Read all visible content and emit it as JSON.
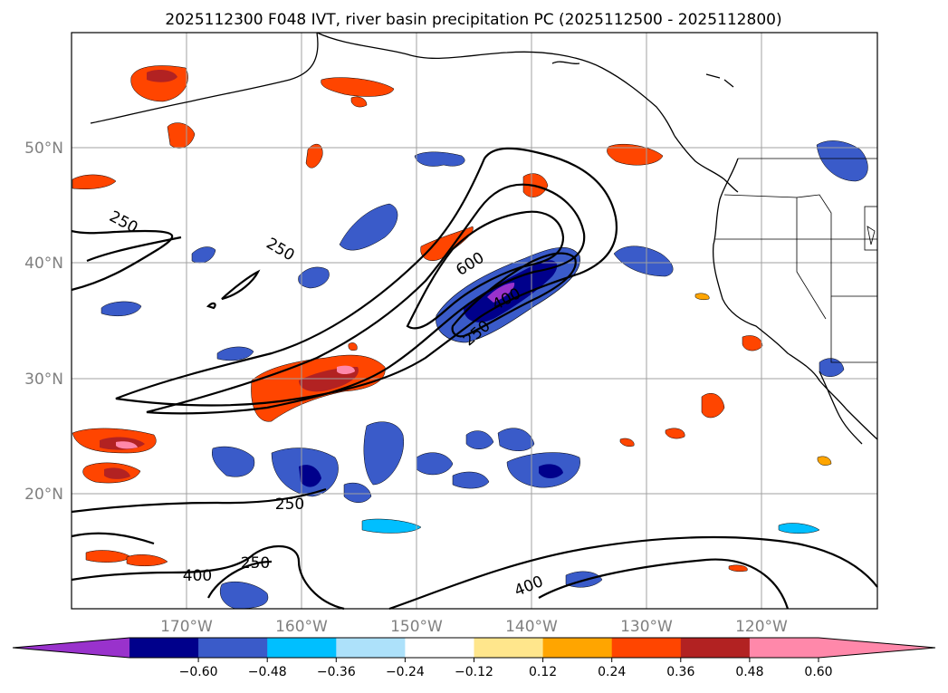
{
  "title": "2025112300 F048 IVT, river basin precipitation PC (2025112500 - 2025112800)",
  "map": {
    "extent": {
      "lon_min": -180,
      "lon_max": -110,
      "lat_min": 10,
      "lat_max": 60
    },
    "lat_ticks": [
      {
        "value": 50,
        "label": "50°N"
      },
      {
        "value": 40,
        "label": "40°N"
      },
      {
        "value": 30,
        "label": "30°N"
      },
      {
        "value": 20,
        "label": "20°N"
      }
    ],
    "lon_ticks": [
      {
        "value": -170,
        "label": "170°W"
      },
      {
        "value": -160,
        "label": "160°W"
      },
      {
        "value": -150,
        "label": "150°W"
      },
      {
        "value": -140,
        "label": "140°W"
      },
      {
        "value": -130,
        "label": "130°W"
      },
      {
        "value": -120,
        "label": "120°W"
      }
    ],
    "ivt_contour_labels": [
      "250",
      "250",
      "600",
      "400",
      "250",
      "250",
      "250",
      "400",
      "400"
    ]
  },
  "colorbar": {
    "ticks": [
      "−0.60",
      "−0.48",
      "−0.36",
      "−0.24",
      "−0.12",
      "0.12",
      "0.24",
      "0.36",
      "0.48",
      "0.60"
    ],
    "colors": {
      "under": "#9932CC",
      "bins": [
        "#00008B",
        "#3A5BC9",
        "#00BFFF",
        "#ADE1FA",
        "#FFFFFF",
        "#FFE68C",
        "#FFA500",
        "#FF4500",
        "#B22222",
        "#FF88AA"
      ],
      "over": "#FF88AA"
    }
  }
}
